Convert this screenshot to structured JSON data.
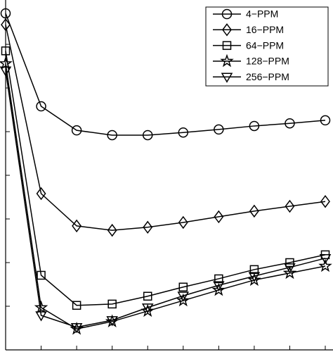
{
  "chart_data": {
    "type": "line",
    "x": [
      1,
      2,
      3,
      4,
      5,
      6,
      7,
      8,
      9,
      10
    ],
    "xlim": [
      1,
      10
    ],
    "xticks": [
      1,
      2,
      3,
      4,
      5,
      6,
      7,
      8,
      9,
      10
    ],
    "ylim": [
      0,
      8
    ],
    "yticks": [
      1,
      2,
      3,
      4,
      5,
      6,
      7
    ],
    "legend": "upper right",
    "series": [
      {
        "name": "4−PPM",
        "color": "#000000",
        "marker": "circle",
        "values": [
          7.71,
          5.58,
          5.03,
          4.92,
          4.92,
          4.98,
          5.05,
          5.13,
          5.19,
          5.26
        ]
      },
      {
        "name": "16−PPM",
        "color": "#000000",
        "marker": "diamond",
        "values": [
          7.45,
          3.58,
          2.84,
          2.74,
          2.81,
          2.92,
          3.05,
          3.18,
          3.29,
          3.4
        ]
      },
      {
        "name": "64−PPM",
        "color": "#000000",
        "marker": "square",
        "values": [
          6.85,
          1.71,
          1.02,
          1.05,
          1.23,
          1.44,
          1.63,
          1.84,
          2.0,
          2.18
        ]
      },
      {
        "name": "128−PPM",
        "color": "#000000",
        "marker": "star",
        "values": [
          6.56,
          0.97,
          0.48,
          0.65,
          0.89,
          1.13,
          1.37,
          1.6,
          1.76,
          1.92
        ]
      },
      {
        "name": "256−PPM",
        "color": "#000000",
        "marker": "triangle-down",
        "values": [
          6.4,
          0.79,
          0.52,
          0.68,
          0.97,
          1.24,
          1.48,
          1.69,
          1.89,
          2.1
        ]
      }
    ]
  }
}
